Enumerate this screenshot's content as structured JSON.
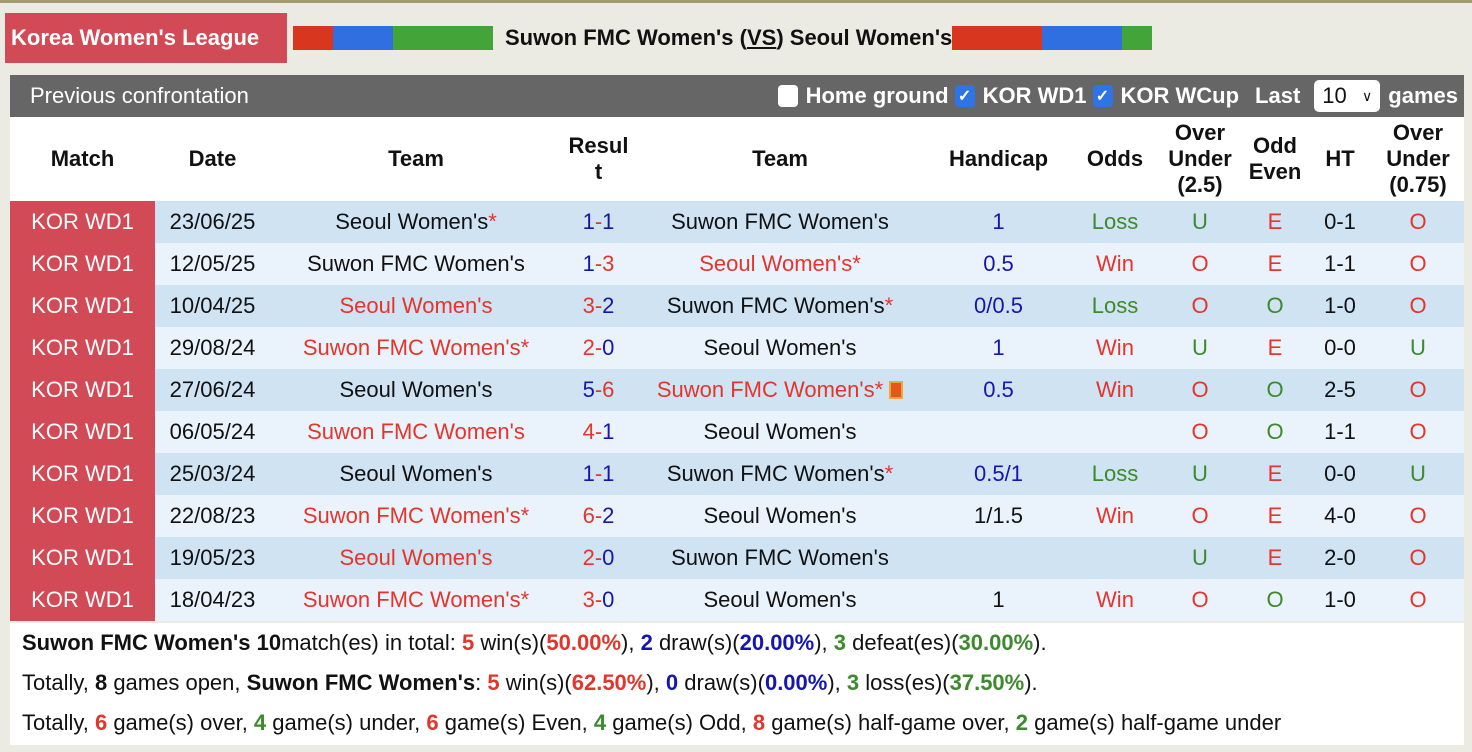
{
  "header": {
    "league": "Korea Women's League",
    "home": "Suwon FMC Women's",
    "vs": "VS",
    "away": "Seoul Women's",
    "home_bar": [
      "#d9361f",
      "#2f6fe0",
      "#43a43a"
    ],
    "away_bar": [
      "#d9361f",
      "#2f6fe0",
      "#43a43a"
    ]
  },
  "panel": {
    "title": "Previous confrontation",
    "home_ground": "Home ground",
    "home_ground_checked": false,
    "kor_wd1": "KOR WD1",
    "kor_wd1_checked": true,
    "kor_wcup": "KOR WCup",
    "kor_wcup_checked": true,
    "last": "Last",
    "last_value": "10",
    "games": "games"
  },
  "columns": [
    "Match",
    "Date",
    "Team",
    "Result",
    "Team",
    "Handicap",
    "Odds",
    "Over Under (2.5)",
    "Odd Even",
    "HT",
    "Over Under (0.75)"
  ],
  "colors": {
    "red": "#e3352b",
    "blue": "#1515b0",
    "green": "#3b8a2c",
    "league": "#d24a55"
  },
  "rows": [
    {
      "match": "KOR WD1",
      "date": "23/06/25",
      "home": "Seoul Women's",
      "home_star": true,
      "home_c": "blk",
      "s1": "1",
      "s1c": "blue",
      "s2": "1",
      "s2c": "blue",
      "away": "Suwon FMC Women's",
      "away_star": false,
      "away_c": "blk",
      "hcp": "1",
      "hcpc": "blue",
      "odds": "Loss",
      "oddsc": "green",
      "ou": "U",
      "ouc": "green",
      "oe": "E",
      "oec": "red",
      "ht": "0-1",
      "ou2": "O",
      "ou2c": "red"
    },
    {
      "match": "KOR WD1",
      "date": "12/05/25",
      "home": "Suwon FMC Women's",
      "home_star": false,
      "home_c": "blk",
      "s1": "1",
      "s1c": "blue",
      "s2": "3",
      "s2c": "red",
      "away": "Seoul Women's",
      "away_star": true,
      "away_c": "red",
      "hcp": "0.5",
      "hcpc": "blue",
      "odds": "Win",
      "oddsc": "red",
      "ou": "O",
      "ouc": "red",
      "oe": "E",
      "oec": "red",
      "ht": "1-1",
      "ou2": "O",
      "ou2c": "red"
    },
    {
      "match": "KOR WD1",
      "date": "10/04/25",
      "home": "Seoul Women's",
      "home_star": false,
      "home_c": "red",
      "s1": "3",
      "s1c": "red",
      "s2": "2",
      "s2c": "blue",
      "away": "Suwon FMC Women's",
      "away_star": true,
      "away_c": "blk",
      "hcp": "0/0.5",
      "hcpc": "blue",
      "odds": "Loss",
      "oddsc": "green",
      "ou": "O",
      "ouc": "red",
      "oe": "O",
      "oec": "green",
      "ht": "1-0",
      "ou2": "O",
      "ou2c": "red"
    },
    {
      "match": "KOR WD1",
      "date": "29/08/24",
      "home": "Suwon FMC Women's",
      "home_star": true,
      "home_c": "red",
      "s1": "2",
      "s1c": "red",
      "s2": "0",
      "s2c": "blue",
      "away": "Seoul Women's",
      "away_star": false,
      "away_c": "blk",
      "hcp": "1",
      "hcpc": "blue",
      "odds": "Win",
      "oddsc": "red",
      "ou": "U",
      "ouc": "green",
      "oe": "E",
      "oec": "red",
      "ht": "0-0",
      "ou2": "U",
      "ou2c": "green"
    },
    {
      "match": "KOR WD1",
      "date": "27/06/24",
      "home": "Seoul Women's",
      "home_star": false,
      "home_c": "blk",
      "s1": "5",
      "s1c": "blue",
      "s2": "6",
      "s2c": "red",
      "away": "Suwon FMC Women's",
      "away_star": true,
      "away_c": "red",
      "away_flag": true,
      "hcp": "0.5",
      "hcpc": "blue",
      "odds": "Win",
      "oddsc": "red",
      "ou": "O",
      "ouc": "red",
      "oe": "O",
      "oec": "green",
      "ht": "2-5",
      "ou2": "O",
      "ou2c": "red"
    },
    {
      "match": "KOR WD1",
      "date": "06/05/24",
      "home": "Suwon FMC Women's",
      "home_star": false,
      "home_c": "red",
      "s1": "4",
      "s1c": "red",
      "s2": "1",
      "s2c": "blue",
      "away": "Seoul Women's",
      "away_star": false,
      "away_c": "blk",
      "hcp": "",
      "hcpc": "blk",
      "odds": "",
      "oddsc": "red",
      "ou": "O",
      "ouc": "red",
      "oe": "O",
      "oec": "green",
      "ht": "1-1",
      "ou2": "O",
      "ou2c": "red"
    },
    {
      "match": "KOR WD1",
      "date": "25/03/24",
      "home": "Seoul Women's",
      "home_star": false,
      "home_c": "blk",
      "s1": "1",
      "s1c": "blue",
      "s2": "1",
      "s2c": "blue",
      "away": "Suwon FMC Women's",
      "away_star": true,
      "away_c": "blk",
      "hcp": "0.5/1",
      "hcpc": "blue",
      "odds": "Loss",
      "oddsc": "green",
      "ou": "U",
      "ouc": "green",
      "oe": "E",
      "oec": "red",
      "ht": "0-0",
      "ou2": "U",
      "ou2c": "green"
    },
    {
      "match": "KOR WD1",
      "date": "22/08/23",
      "home": "Suwon FMC Women's",
      "home_star": true,
      "home_c": "red",
      "s1": "6",
      "s1c": "red",
      "s2": "2",
      "s2c": "blue",
      "away": "Seoul Women's",
      "away_star": false,
      "away_c": "blk",
      "hcp": "1/1.5",
      "hcpc": "blk",
      "odds": "Win",
      "oddsc": "red",
      "ou": "O",
      "ouc": "red",
      "oe": "E",
      "oec": "red",
      "ht": "4-0",
      "ou2": "O",
      "ou2c": "red"
    },
    {
      "match": "KOR WD1",
      "date": "19/05/23",
      "home": "Seoul Women's",
      "home_star": false,
      "home_c": "red",
      "s1": "2",
      "s1c": "red",
      "s2": "0",
      "s2c": "blue",
      "away": "Suwon FMC Women's",
      "away_star": false,
      "away_c": "blk",
      "hcp": "",
      "hcpc": "blk",
      "odds": "",
      "oddsc": "red",
      "ou": "U",
      "ouc": "green",
      "oe": "E",
      "oec": "red",
      "ht": "2-0",
      "ou2": "O",
      "ou2c": "red"
    },
    {
      "match": "KOR WD1",
      "date": "18/04/23",
      "home": "Suwon FMC Women's",
      "home_star": true,
      "home_c": "red",
      "s1": "3",
      "s1c": "red",
      "s2": "0",
      "s2c": "blue",
      "away": "Seoul Women's",
      "away_star": false,
      "away_c": "blk",
      "hcp": "1",
      "hcpc": "blk",
      "odds": "Win",
      "oddsc": "red",
      "ou": "O",
      "ouc": "red",
      "oe": "O",
      "oec": "green",
      "ht": "1-0",
      "ou2": "O",
      "ou2c": "red"
    }
  ],
  "summary": {
    "line1": [
      [
        "b",
        "Suwon FMC Women's 10"
      ],
      [
        "",
        "match(es) in total: "
      ],
      [
        "red",
        "5"
      ],
      [
        "",
        " win(s)("
      ],
      [
        "red",
        "50.00%"
      ],
      [
        "",
        "), "
      ],
      [
        "blue",
        "2"
      ],
      [
        "",
        " draw(s)("
      ],
      [
        "blue",
        "20.00%"
      ],
      [
        "",
        "), "
      ],
      [
        "green",
        "3"
      ],
      [
        "",
        " defeat(es)("
      ],
      [
        "green",
        "30.00%"
      ],
      [
        "",
        ")."
      ]
    ],
    "line2": [
      [
        "",
        "Totally, "
      ],
      [
        "b",
        "8"
      ],
      [
        "",
        " games open, "
      ],
      [
        "b",
        "Suwon FMC Women's"
      ],
      [
        "",
        ": "
      ],
      [
        "red",
        "5"
      ],
      [
        "",
        " win(s)("
      ],
      [
        "red",
        "62.50%"
      ],
      [
        "",
        "), "
      ],
      [
        "blue",
        "0"
      ],
      [
        "",
        " draw(s)("
      ],
      [
        "blue",
        "0.00%"
      ],
      [
        "",
        "), "
      ],
      [
        "green",
        "3"
      ],
      [
        "",
        " loss(es)("
      ],
      [
        "green",
        "37.50%"
      ],
      [
        "",
        ")."
      ]
    ],
    "line3": [
      [
        "",
        "Totally, "
      ],
      [
        "red",
        "6"
      ],
      [
        "",
        " game(s) over, "
      ],
      [
        "green",
        "4"
      ],
      [
        "",
        " game(s) under, "
      ],
      [
        "red",
        "6"
      ],
      [
        "",
        " game(s) Even, "
      ],
      [
        "green",
        "4"
      ],
      [
        "",
        " game(s) Odd, "
      ],
      [
        "red",
        "8"
      ],
      [
        "",
        " game(s) half-game over, "
      ],
      [
        "green",
        "2"
      ],
      [
        "",
        " game(s) half-game under"
      ]
    ]
  }
}
